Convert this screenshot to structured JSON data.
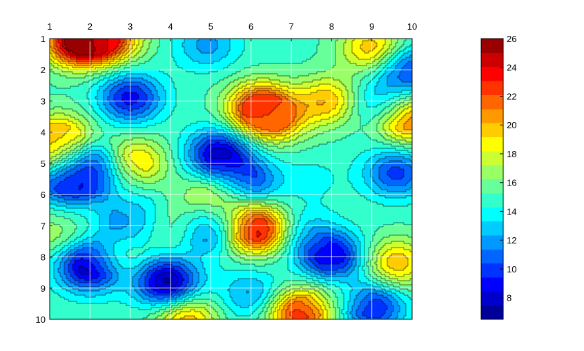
{
  "chart_data": {
    "type": "heatmap",
    "title": "",
    "xlabel": "",
    "ylabel": "",
    "x_ticks": [
      "1",
      "2",
      "3",
      "4",
      "5",
      "6",
      "7",
      "8",
      "9",
      "10"
    ],
    "y_ticks": [
      "1",
      "2",
      "3",
      "4",
      "5",
      "6",
      "7",
      "8",
      "9",
      "10"
    ],
    "xlim": [
      1,
      10
    ],
    "ylim": [
      1,
      10
    ],
    "y_axis_reversed": true,
    "x_axis_location": "top",
    "grid": true,
    "colorbar": {
      "ticks": [
        "8",
        "10",
        "12",
        "14",
        "16",
        "18",
        "20",
        "22",
        "24",
        "26"
      ],
      "range": [
        6.5,
        26
      ],
      "colormap": "jet"
    },
    "peaks": [
      {
        "x": 1.7,
        "y": 1.1,
        "value": 26
      },
      {
        "x": 3.0,
        "y": 2.9,
        "value": 9
      },
      {
        "x": 2.5,
        "y": 1.0,
        "value": 22
      },
      {
        "x": 4.9,
        "y": 1.2,
        "value": 12
      },
      {
        "x": 6.2,
        "y": 3.2,
        "value": 23
      },
      {
        "x": 6.6,
        "y": 3.6,
        "value": 20
      },
      {
        "x": 7.9,
        "y": 3.0,
        "value": 20
      },
      {
        "x": 9.0,
        "y": 1.3,
        "value": 20
      },
      {
        "x": 9.9,
        "y": 2.0,
        "value": 10
      },
      {
        "x": 9.2,
        "y": 3.1,
        "value": 12
      },
      {
        "x": 9.9,
        "y": 3.6,
        "value": 22
      },
      {
        "x": 1.3,
        "y": 4.1,
        "value": 19
      },
      {
        "x": 1.0,
        "y": 4.6,
        "value": 20
      },
      {
        "x": 2.0,
        "y": 5.2,
        "value": 8
      },
      {
        "x": 1.4,
        "y": 5.6,
        "value": 10
      },
      {
        "x": 3.1,
        "y": 5.0,
        "value": 20
      },
      {
        "x": 5.2,
        "y": 4.7,
        "value": 8
      },
      {
        "x": 5.9,
        "y": 5.6,
        "value": 10
      },
      {
        "x": 5.1,
        "y": 6.1,
        "value": 19
      },
      {
        "x": 6.1,
        "y": 7.1,
        "value": 25
      },
      {
        "x": 5.0,
        "y": 7.1,
        "value": 10
      },
      {
        "x": 3.0,
        "y": 7.0,
        "value": 11
      },
      {
        "x": 4.0,
        "y": 7.1,
        "value": 17
      },
      {
        "x": 2.0,
        "y": 8.3,
        "value": 7
      },
      {
        "x": 1.1,
        "y": 7.3,
        "value": 17
      },
      {
        "x": 3.9,
        "y": 8.8,
        "value": 7
      },
      {
        "x": 2.8,
        "y": 8.0,
        "value": 17
      },
      {
        "x": 8.0,
        "y": 8.0,
        "value": 8
      },
      {
        "x": 7.3,
        "y": 7.2,
        "value": 13
      },
      {
        "x": 9.6,
        "y": 8.2,
        "value": 20
      },
      {
        "x": 9.6,
        "y": 5.3,
        "value": 10
      },
      {
        "x": 7.2,
        "y": 9.8,
        "value": 23
      },
      {
        "x": 4.4,
        "y": 10.0,
        "value": 20
      },
      {
        "x": 6.0,
        "y": 9.2,
        "value": 12
      },
      {
        "x": 9.0,
        "y": 9.6,
        "value": 9
      },
      {
        "x": 8.1,
        "y": 9.2,
        "value": 16
      },
      {
        "x": 7.5,
        "y": 5.5,
        "value": 14
      },
      {
        "x": 4.2,
        "y": 3.0,
        "value": 15
      },
      {
        "x": 3.0,
        "y": 6.0,
        "value": 14
      }
    ]
  }
}
